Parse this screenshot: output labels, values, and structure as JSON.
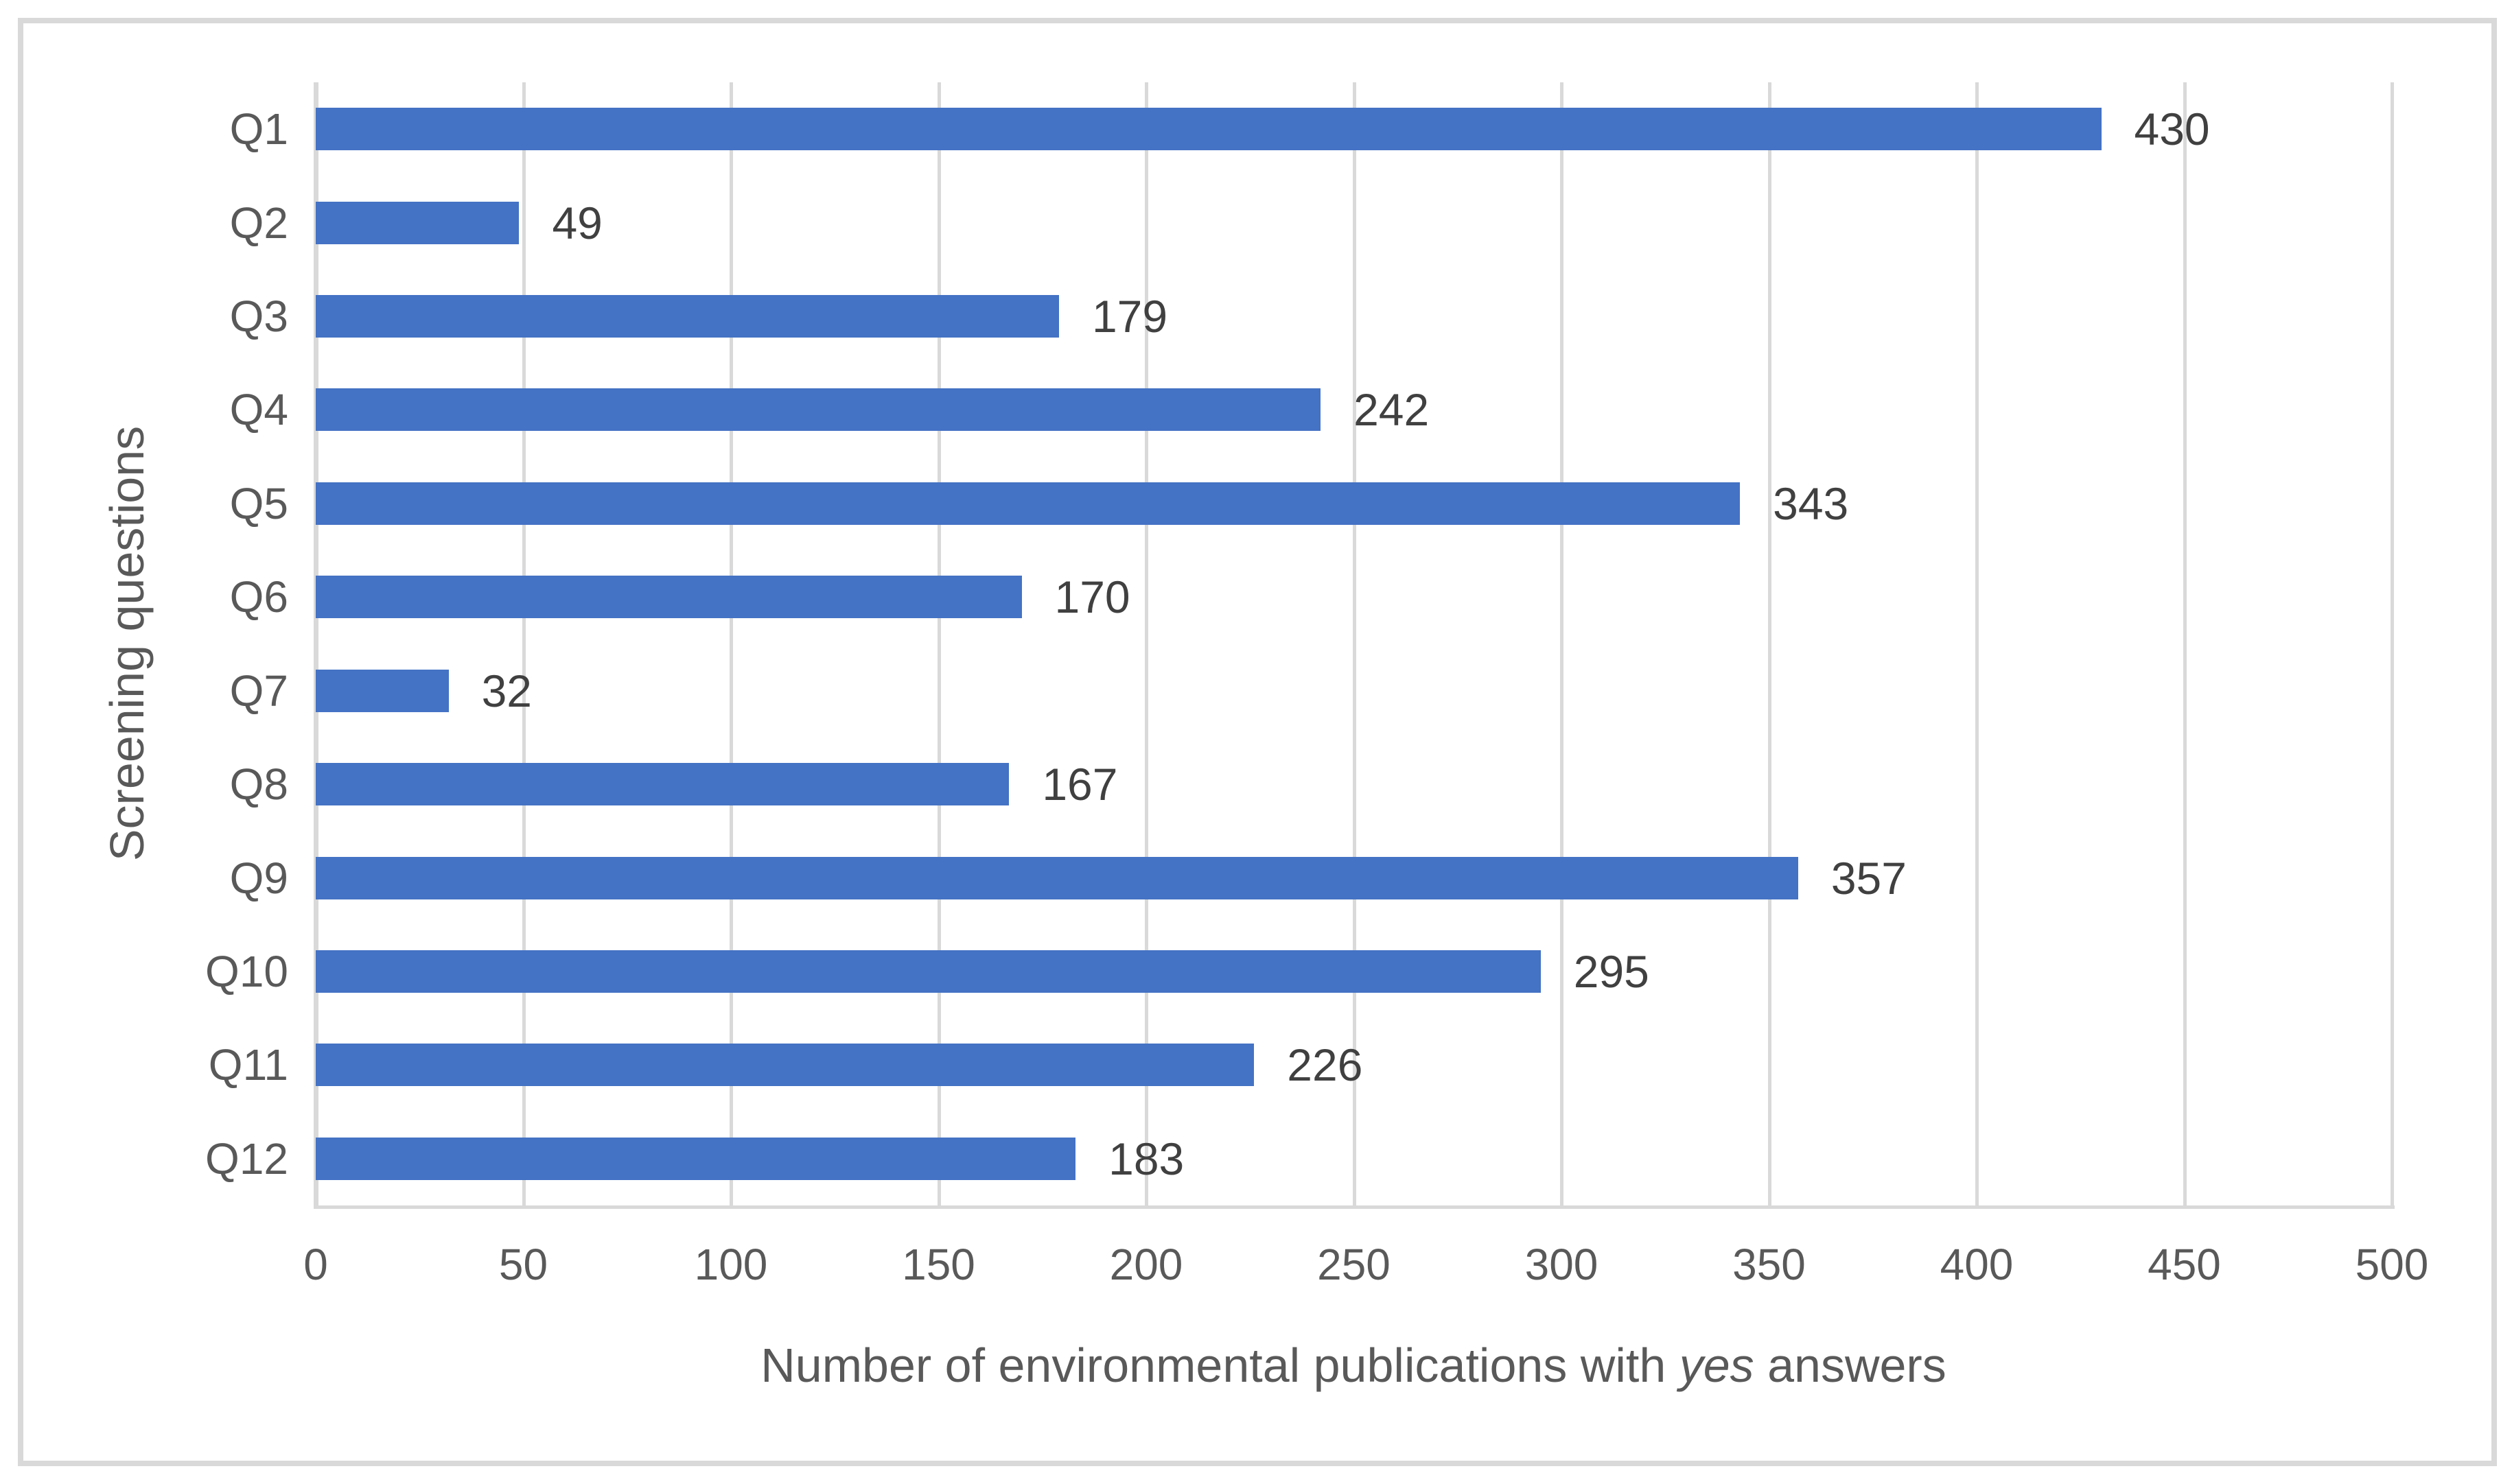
{
  "chart_data": {
    "type": "bar",
    "orientation": "horizontal",
    "title": "",
    "categories": [
      "Q1",
      "Q2",
      "Q3",
      "Q4",
      "Q5",
      "Q6",
      "Q7",
      "Q8",
      "Q9",
      "Q10",
      "Q11",
      "Q12"
    ],
    "values": [
      430,
      49,
      179,
      242,
      343,
      170,
      32,
      167,
      357,
      295,
      226,
      183
    ],
    "data_labels": [
      "430",
      "49",
      "179",
      "242",
      "343",
      "170",
      "32",
      "167",
      "357",
      "295",
      "226",
      "183"
    ],
    "xlabel": "Number of environmental publications with yes answers",
    "xlabel_parts": {
      "prefix": "Number of environmental publications with ",
      "italic": "yes",
      "suffix": " answers"
    },
    "ylabel": "Screening questions",
    "xlim": [
      0,
      500
    ],
    "xticks": [
      0,
      50,
      100,
      150,
      200,
      250,
      300,
      350,
      400,
      450,
      500
    ],
    "grid": "vertical-gridlines-on",
    "legend": "none",
    "colors": {
      "bar": "#4472C4",
      "gridline": "#D9D9D9",
      "axis_line": "#D9D9D9",
      "chart_border": "#D9D9D9",
      "tick_label": "#595959",
      "axis_title": "#595959",
      "data_label": "#404040",
      "background": "#FFFFFF"
    }
  }
}
